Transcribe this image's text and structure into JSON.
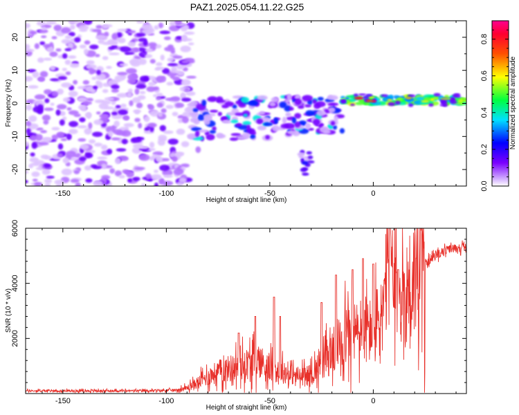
{
  "page": {
    "title": "PAZ1.2025.054.11.22.G25"
  },
  "chart_data": [
    {
      "type": "heatmap",
      "title": "PAZ1.2025.054.11.22.G25",
      "xlabel": "Height of straight line (km)",
      "ylabel": "Frequency (Hz)",
      "xlim": [
        -168,
        45
      ],
      "ylim": [
        -25,
        25
      ],
      "x_ticks": [
        -150,
        -100,
        -50,
        0
      ],
      "x_tick_labels": [
        "-150",
        "-100",
        "-50",
        "0"
      ],
      "y_ticks": [
        -20,
        -10,
        0,
        10,
        20
      ],
      "y_tick_labels": [
        "-20",
        "-10",
        "0",
        "10",
        "20"
      ],
      "grid": false,
      "colorscale": "rainbow (purple → blue → cyan → green → yellow → red → magenta)",
      "colorbar": {
        "label": "Normalized spectral amplitude",
        "range": [
          0,
          0.9
        ],
        "ticks": [
          0.0,
          0.2,
          0.4,
          0.6,
          0.8
        ],
        "tick_labels": [
          "0.0",
          "0.2",
          "0.4",
          "0.6",
          "0.8"
        ]
      },
      "description_features": [
        {
          "x_range": [
            -168,
            -88
          ],
          "freq_range": [
            -25,
            25
          ],
          "amplitude": 0.05
        },
        {
          "x_range": [
            -88,
            -15
          ],
          "freq_range": [
            -10,
            6
          ],
          "amplitude": 0.15
        },
        {
          "x_range": [
            -35,
            -30
          ],
          "freq_range": [
            -19,
            -17
          ],
          "amplitude": 0.2
        },
        {
          "x_range": [
            -15,
            45
          ],
          "freq_range": [
            -1,
            3
          ],
          "amplitude": 0.6
        },
        {
          "x_range": [
            -10,
            -5
          ],
          "freq_range": [
            1,
            2
          ],
          "amplitude": 0.85
        },
        {
          "x_range": [
            0,
            10
          ],
          "freq_range": [
            0,
            1
          ],
          "amplitude": 0.75
        },
        {
          "x_range": [
            25,
            45
          ],
          "freq_range": [
            0,
            2
          ],
          "amplitude": 0.5
        }
      ]
    },
    {
      "type": "line",
      "xlabel": "Height of straight line (km)",
      "ylabel": "SNR (10 * v/v)",
      "xlim": [
        -168,
        45
      ],
      "ylim": [
        0,
        6000
      ],
      "x_ticks": [
        -150,
        -100,
        -50,
        0
      ],
      "x_tick_labels": [
        "-150",
        "-100",
        "-50",
        "0"
      ],
      "y_ticks": [
        2000,
        4000,
        6000
      ],
      "y_tick_labels": [
        "2000",
        "4000",
        "6000"
      ],
      "grid": false,
      "series": [
        {
          "color": "#e8302a",
          "x": [
            -168,
            -160,
            -150,
            -140,
            -130,
            -120,
            -110,
            -100,
            -95,
            -90,
            -85,
            -80,
            -75,
            -70,
            -65,
            -60,
            -55,
            -50,
            -45,
            -40,
            -35,
            -30,
            -25,
            -20,
            -15,
            -10,
            -5,
            0,
            5,
            8,
            10,
            15,
            20,
            25,
            30,
            35,
            40,
            45
          ],
          "values": [
            100,
            100,
            100,
            100,
            100,
            100,
            100,
            120,
            130,
            200,
            400,
            600,
            800,
            900,
            1000,
            1100,
            1200,
            900,
            800,
            700,
            600,
            700,
            1100,
            1500,
            2000,
            2200,
            2200,
            2300,
            3000,
            5200,
            3400,
            3500,
            4300,
            4700,
            5000,
            5200,
            5300,
            5300
          ],
          "spikes": [
            [
              -65,
              2200
            ],
            [
              -57,
              2800
            ],
            [
              -48,
              3500
            ],
            [
              -45,
              2800
            ],
            [
              -25,
              3300
            ],
            [
              -18,
              4300
            ],
            [
              -10,
              4500
            ],
            [
              -5,
              4900
            ],
            [
              0,
              4700
            ],
            [
              8,
              6000
            ],
            [
              12,
              4500
            ]
          ]
        }
      ]
    }
  ]
}
